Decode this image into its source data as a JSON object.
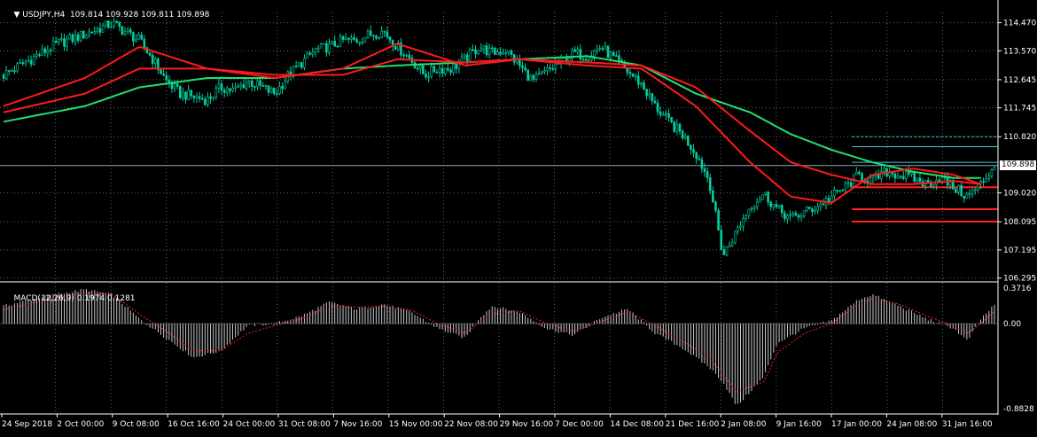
{
  "main_header": {
    "symbol": "USDJPY,H4",
    "ohlc": "109.814 109.928 109.811 109.898"
  },
  "macd_header": {
    "label": "MACD(12,26,9)",
    "values": "0.1974 0.1281"
  },
  "colors": {
    "background": "#000000",
    "candle": "#00d0a0",
    "ma_red": "#ff1a1a",
    "ma_green": "#20e070",
    "hist": "#c8c8c8",
    "signal": "#ff2020",
    "hline_cyan": "#40c8d8",
    "hline_red": "#ff2020",
    "bid_line": "#8aa0b0"
  },
  "chart_data": [
    {
      "type": "candlestick",
      "title": "USDJPY,H4",
      "y_ticks": [
        "114.470",
        "113.570",
        "112.645",
        "111.745",
        "110.820",
        "109.898",
        "109.020",
        "108.095",
        "107.195",
        "106.295"
      ],
      "current_price": "109.898",
      "ylim": [
        106.2,
        114.8
      ],
      "x_ticks": [
        "24 Sep 2018",
        "2 Oct 00:00",
        "9 Oct 08:00",
        "16 Oct 16:00",
        "24 Oct 00:00",
        "31 Oct 08:00",
        "7 Nov 16:00",
        "15 Nov 00:00",
        "22 Nov 08:00",
        "29 Nov 16:00",
        "7 Dec 00:00",
        "14 Dec 08:00",
        "21 Dec 16:00",
        "2 Jan 08:00",
        "9 Jan 16:00",
        "17 Jan 00:00",
        "24 Jan 08:00",
        "31 Jan 16:00"
      ],
      "close_path": [
        [
          0,
          112.8
        ],
        [
          2,
          113.3
        ],
        [
          4,
          113.8
        ],
        [
          6,
          114.1
        ],
        [
          8,
          114.45
        ],
        [
          10,
          113.9
        ],
        [
          11,
          113.3
        ],
        [
          12,
          112.6
        ],
        [
          13,
          112.2
        ],
        [
          14,
          112.1
        ],
        [
          15,
          112.0
        ],
        [
          16,
          112.4
        ],
        [
          17,
          112.3
        ],
        [
          18,
          112.6
        ],
        [
          19,
          112.4
        ],
        [
          20,
          112.2
        ],
        [
          21,
          112.8
        ],
        [
          22,
          113.2
        ],
        [
          23,
          113.6
        ],
        [
          24,
          113.7
        ],
        [
          25,
          113.9
        ],
        [
          26,
          113.9
        ],
        [
          27,
          114.1
        ],
        [
          28,
          114.2
        ],
        [
          29,
          113.7
        ],
        [
          30,
          113.3
        ],
        [
          31,
          112.8
        ],
        [
          32,
          113.0
        ],
        [
          33,
          113.0
        ],
        [
          34,
          113.3
        ],
        [
          35,
          113.7
        ],
        [
          36,
          113.5
        ],
        [
          37,
          113.6
        ],
        [
          38,
          113.1
        ],
        [
          39,
          112.6
        ],
        [
          40,
          112.9
        ],
        [
          41,
          113.2
        ],
        [
          42,
          113.5
        ],
        [
          43,
          113.4
        ],
        [
          44,
          113.7
        ],
        [
          45,
          113.3
        ],
        [
          46,
          112.9
        ],
        [
          47,
          112.5
        ],
        [
          48,
          111.8
        ],
        [
          49,
          111.3
        ],
        [
          50,
          110.9
        ],
        [
          51,
          110.3
        ],
        [
          52,
          109.4
        ],
        [
          53,
          107.0
        ],
        [
          54,
          107.8
        ],
        [
          55,
          108.6
        ],
        [
          56,
          109.0
        ],
        [
          57,
          108.5
        ],
        [
          58,
          108.2
        ],
        [
          59,
          108.4
        ],
        [
          60,
          108.6
        ],
        [
          61,
          108.9
        ],
        [
          62,
          109.2
        ],
        [
          63,
          109.6
        ],
        [
          64,
          109.4
        ],
        [
          65,
          109.7
        ],
        [
          66,
          109.6
        ],
        [
          67,
          109.5
        ],
        [
          68,
          109.3
        ],
        [
          69,
          109.5
        ],
        [
          70,
          109.2
        ],
        [
          71,
          108.9
        ],
        [
          72,
          109.3
        ],
        [
          73,
          109.9
        ]
      ],
      "ma_fast": [
        [
          0,
          111.8
        ],
        [
          6,
          112.7
        ],
        [
          10,
          113.7
        ],
        [
          15,
          113.0
        ],
        [
          20,
          112.7
        ],
        [
          25,
          113.0
        ],
        [
          29,
          113.8
        ],
        [
          34,
          113.1
        ],
        [
          38,
          113.3
        ],
        [
          43,
          113.1
        ],
        [
          47,
          113.0
        ],
        [
          51,
          111.8
        ],
        [
          55,
          110.0
        ],
        [
          58,
          108.9
        ],
        [
          61,
          108.7
        ],
        [
          64,
          109.6
        ],
        [
          67,
          109.8
        ],
        [
          70,
          109.6
        ],
        [
          72,
          109.3
        ]
      ],
      "ma_mid": [
        [
          0,
          111.6
        ],
        [
          6,
          112.2
        ],
        [
          10,
          113.0
        ],
        [
          15,
          113.0
        ],
        [
          20,
          112.8
        ],
        [
          25,
          112.8
        ],
        [
          29,
          113.3
        ],
        [
          34,
          113.2
        ],
        [
          38,
          113.3
        ],
        [
          43,
          113.2
        ],
        [
          47,
          113.1
        ],
        [
          51,
          112.4
        ],
        [
          55,
          111.0
        ],
        [
          58,
          110.0
        ],
        [
          61,
          109.6
        ],
        [
          64,
          109.3
        ],
        [
          67,
          109.3
        ],
        [
          70,
          109.4
        ],
        [
          72,
          109.3
        ]
      ],
      "ma_slow": [
        [
          0,
          111.3
        ],
        [
          6,
          111.8
        ],
        [
          10,
          112.4
        ],
        [
          15,
          112.7
        ],
        [
          20,
          112.7
        ],
        [
          25,
          113.0
        ],
        [
          29,
          113.1
        ],
        [
          34,
          113.2
        ],
        [
          38,
          113.3
        ],
        [
          43,
          113.4
        ],
        [
          47,
          113.1
        ],
        [
          51,
          112.2
        ],
        [
          55,
          111.6
        ],
        [
          58,
          110.9
        ],
        [
          61,
          110.4
        ],
        [
          64,
          110.0
        ],
        [
          67,
          109.7
        ],
        [
          70,
          109.5
        ],
        [
          72,
          109.5
        ]
      ],
      "h_levels_cyan": [
        110.82,
        110.5,
        110.0
      ],
      "h_levels_red": [
        109.2,
        108.5,
        108.1
      ]
    },
    {
      "type": "histogram",
      "title": "MACD(12,26,9)",
      "y_ticks": [
        "0.3716",
        "0.00",
        "-0.8828"
      ],
      "ylim": [
        -0.92,
        0.42
      ],
      "hist_path": [
        [
          0,
          0.18
        ],
        [
          3,
          0.28
        ],
        [
          6,
          0.35
        ],
        [
          8,
          0.3
        ],
        [
          10,
          0.05
        ],
        [
          12,
          -0.15
        ],
        [
          14,
          -0.35
        ],
        [
          16,
          -0.28
        ],
        [
          18,
          -0.02
        ],
        [
          20,
          0.0
        ],
        [
          22,
          0.08
        ],
        [
          24,
          0.22
        ],
        [
          26,
          0.15
        ],
        [
          28,
          0.2
        ],
        [
          30,
          0.12
        ],
        [
          32,
          -0.05
        ],
        [
          34,
          -0.15
        ],
        [
          35,
          0.05
        ],
        [
          36,
          0.18
        ],
        [
          38,
          0.12
        ],
        [
          40,
          -0.05
        ],
        [
          42,
          -0.12
        ],
        [
          44,
          0.06
        ],
        [
          46,
          0.15
        ],
        [
          48,
          -0.1
        ],
        [
          50,
          -0.25
        ],
        [
          52,
          -0.45
        ],
        [
          53,
          -0.6
        ],
        [
          54,
          -0.85
        ],
        [
          56,
          -0.55
        ],
        [
          57,
          -0.2
        ],
        [
          59,
          -0.05
        ],
        [
          61,
          0.03
        ],
        [
          63,
          0.25
        ],
        [
          64,
          0.3
        ],
        [
          66,
          0.18
        ],
        [
          68,
          0.05
        ],
        [
          70,
          -0.05
        ],
        [
          71,
          -0.18
        ],
        [
          72,
          0.05
        ],
        [
          73,
          0.19
        ]
      ],
      "signal_path": [
        [
          0,
          0.14
        ],
        [
          3,
          0.24
        ],
        [
          6,
          0.32
        ],
        [
          8,
          0.3
        ],
        [
          10,
          0.1
        ],
        [
          12,
          -0.08
        ],
        [
          14,
          -0.28
        ],
        [
          16,
          -0.28
        ],
        [
          18,
          -0.1
        ],
        [
          20,
          -0.02
        ],
        [
          22,
          0.05
        ],
        [
          24,
          0.18
        ],
        [
          26,
          0.17
        ],
        [
          28,
          0.18
        ],
        [
          30,
          0.14
        ],
        [
          32,
          0.0
        ],
        [
          34,
          -0.1
        ],
        [
          36,
          0.1
        ],
        [
          38,
          0.13
        ],
        [
          40,
          0.0
        ],
        [
          42,
          -0.08
        ],
        [
          44,
          0.02
        ],
        [
          46,
          0.12
        ],
        [
          48,
          -0.02
        ],
        [
          50,
          -0.18
        ],
        [
          52,
          -0.35
        ],
        [
          54,
          -0.7
        ],
        [
          56,
          -0.6
        ],
        [
          57,
          -0.3
        ],
        [
          59,
          -0.1
        ],
        [
          61,
          0.0
        ],
        [
          63,
          0.2
        ],
        [
          64,
          0.26
        ],
        [
          66,
          0.2
        ],
        [
          68,
          0.08
        ],
        [
          70,
          -0.02
        ],
        [
          71,
          -0.1
        ],
        [
          72,
          0.0
        ],
        [
          73,
          0.13
        ]
      ]
    }
  ]
}
